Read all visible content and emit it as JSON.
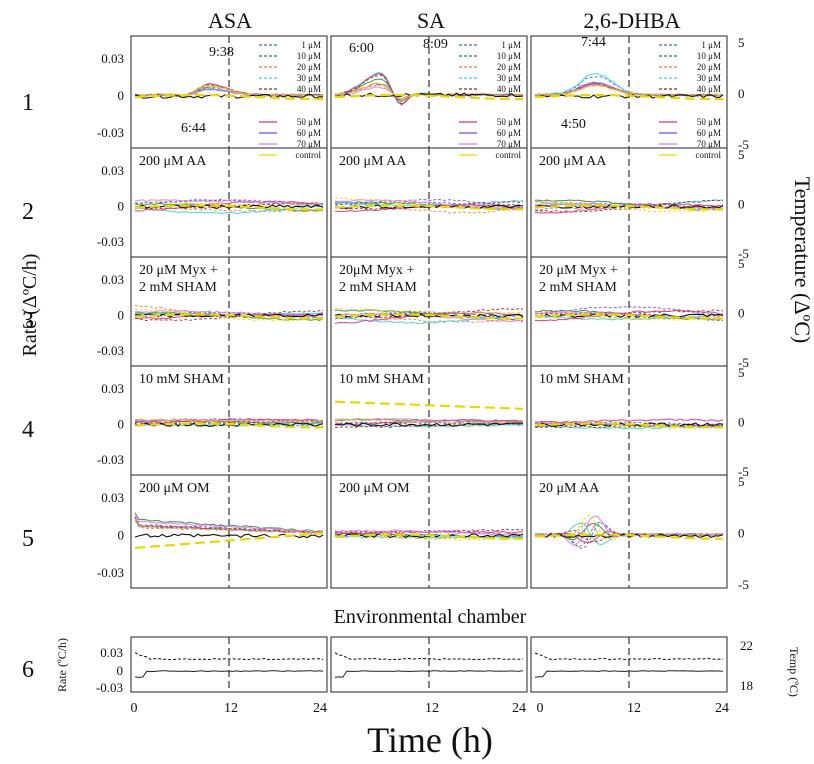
{
  "chart_data": {
    "type": "line",
    "columns": [
      "ASA",
      "SA",
      "2,6-DHBA"
    ],
    "rows": [
      "1",
      "2",
      "3",
      "4",
      "5",
      "6"
    ],
    "left_axis_label": "Rate (ΔºC/h)",
    "right_axis_label": "Temperature (ΔºC)",
    "x_label": "Time (h)",
    "rate_ticks": [
      "0.03",
      "0",
      "-0.03"
    ],
    "temp_ticks": [
      "5",
      "0",
      "-5"
    ],
    "x_ticks": [
      "0",
      "12",
      "24"
    ],
    "x_range": [
      0,
      24
    ],
    "rate_range": [
      -0.03,
      0.03
    ],
    "temp_range": [
      -5,
      5
    ],
    "dashed_reference_time": 12,
    "legend_entries": [
      "1 μM",
      "10 μM",
      "20 μM",
      "30 μM",
      "40 μM",
      "50 μM",
      "60 μM",
      "70 μM",
      "control"
    ],
    "legend_colors": [
      "#2a6fd6",
      "#2e8b3a",
      "#f07a3a",
      "#3ad6d6",
      "#8b2a2a",
      "#e0337a",
      "#7a4ad6",
      "#e07ae0",
      "#e8d800"
    ],
    "row1_annotations": [
      {
        "column": 0,
        "label": "9:38"
      },
      {
        "column": 0,
        "label": "6:44"
      },
      {
        "column": 1,
        "label": "6:00"
      },
      {
        "column": 1,
        "label": "8:09"
      },
      {
        "column": 2,
        "label": "7:44"
      },
      {
        "column": 2,
        "label": "4:50"
      }
    ],
    "panel_labels": [
      [
        "",
        "",
        ""
      ],
      [
        "200 μM AA",
        "200 μM AA",
        "200 μM AA"
      ],
      [
        "20 μM Myx +|2 mM SHAM",
        "20μM Myx +|2 mM SHAM",
        "20 μM Myx +|2 mM SHAM"
      ],
      [
        "10 mM SHAM",
        "10 mM SHAM",
        "10 mM SHAM"
      ],
      [
        "200 μM OM",
        "200 μM OM",
        "20 μM AA"
      ]
    ],
    "row1_peaks": [
      {
        "peak_time_h": 9.6,
        "peak_rate": 0.009,
        "trough_time_h": 6.7,
        "trough_rate": -0.004
      },
      {
        "peak_time_h": 6.0,
        "peak_rate": 0.02,
        "trough_time_h": 8.2,
        "trough_rate": -0.02
      },
      {
        "peak_time_h": 7.7,
        "peak_rate": 0.018,
        "trough_time_h": 4.8,
        "trough_rate": -0.002
      }
    ],
    "env_chamber": {
      "title": "Environmental chamber",
      "rate_label": "Rate (ºC/h)",
      "temp_label": "Temp (ºC)",
      "rate_ticks": [
        "0.03",
        "0",
        "-0.03"
      ],
      "temp_ticks": [
        "22",
        "18"
      ],
      "temp_range": [
        18,
        22
      ],
      "temp_level_c": 20.4,
      "rate_level": 0.0
    }
  }
}
